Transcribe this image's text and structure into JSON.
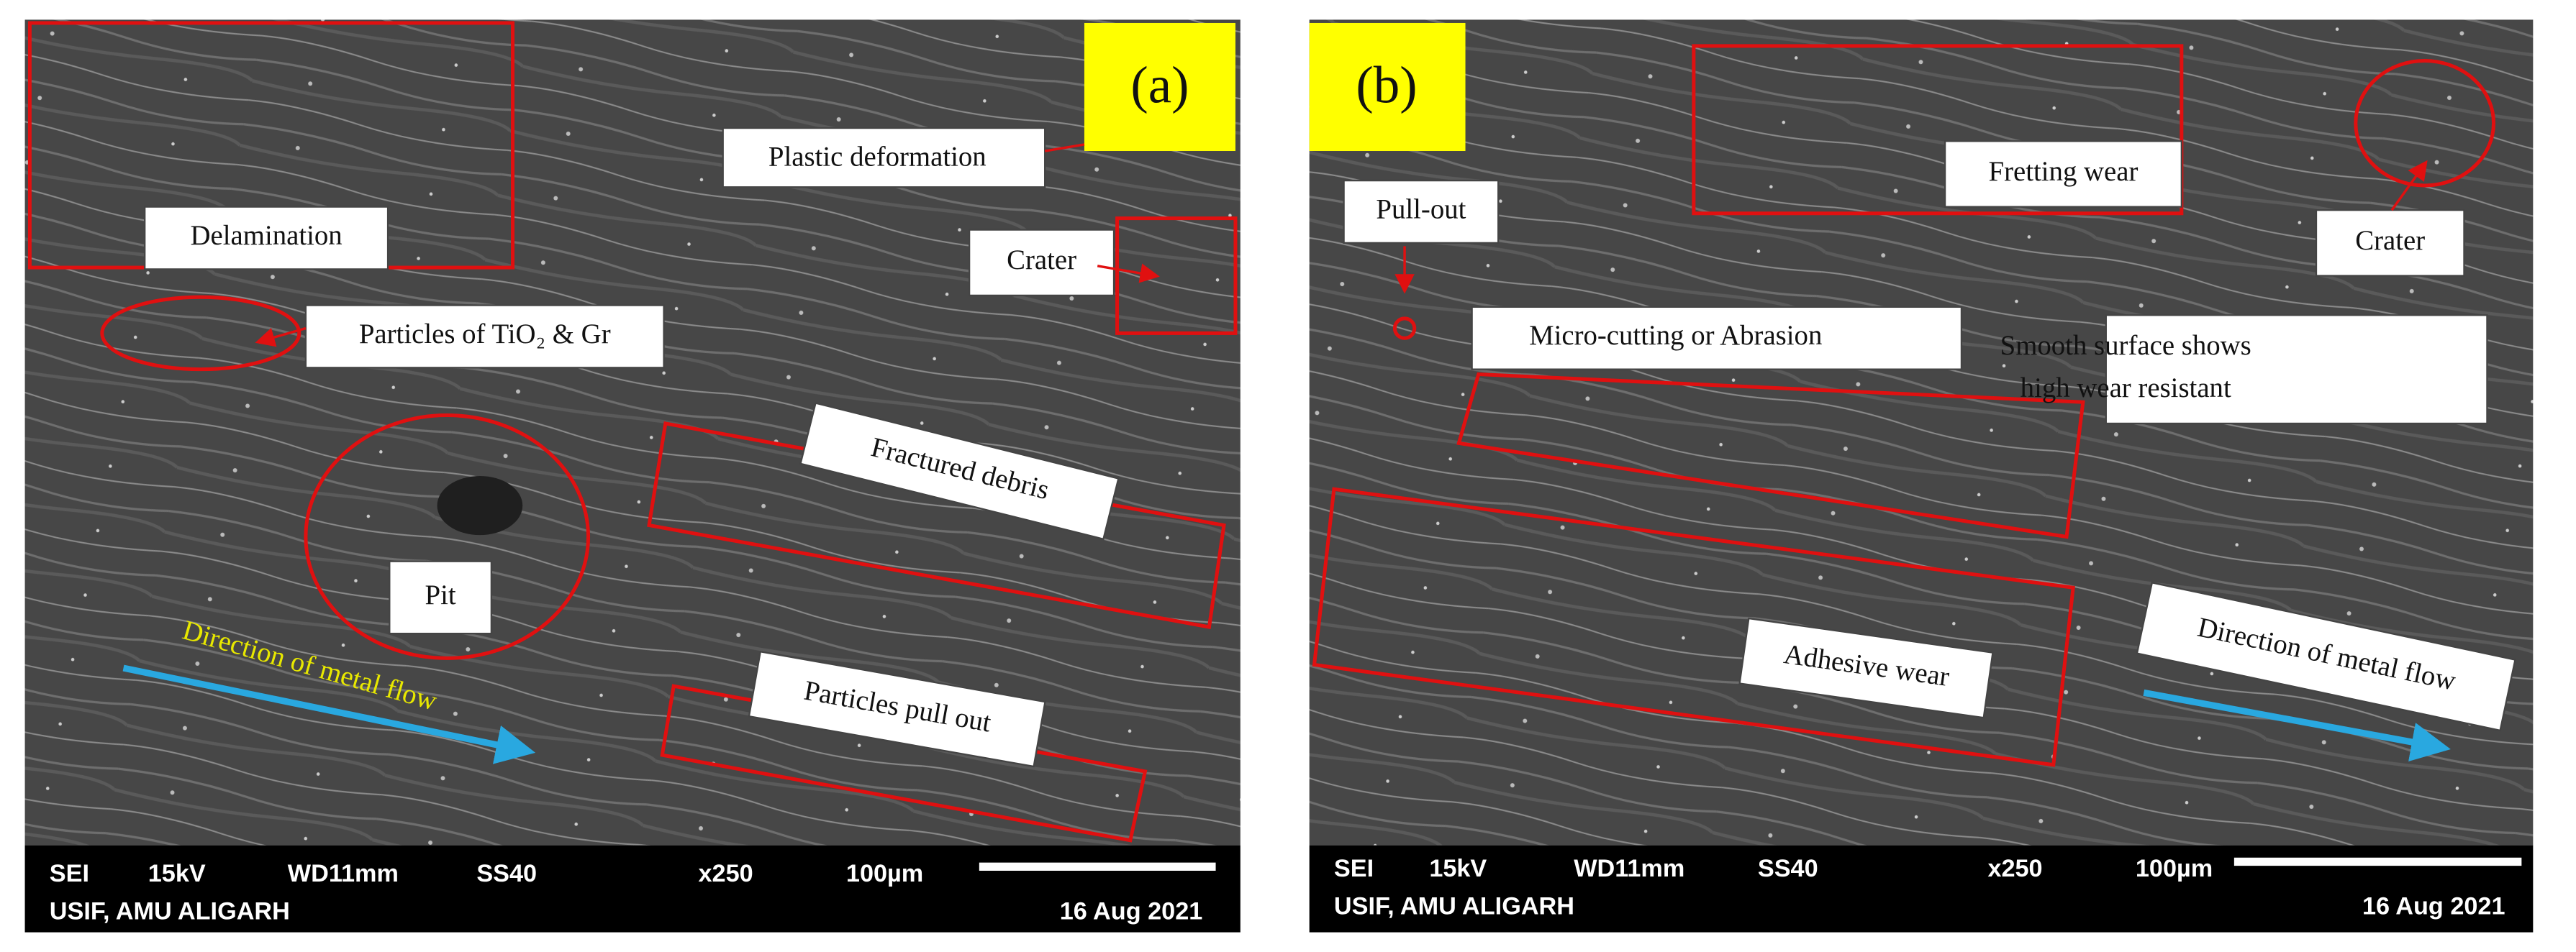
{
  "panels": [
    {
      "label": "(a)",
      "annotations": {
        "delamination": "Delamination",
        "plastic": "Plastic deformation",
        "crater": "Crater",
        "particles": "Particles of TiO₂ & Gr",
        "fractured": "Fractured debris",
        "pit": "Pit",
        "direction": "Direction of metal flow",
        "pullout": "Particles pull out"
      },
      "info": {
        "mode": "SEI",
        "voltage": "15kV",
        "wd": "WD11mm",
        "spot": "SS40",
        "magnification": "x250",
        "scale": "100µm",
        "facility": "USIF, AMU ALIGARH",
        "date": "16 Aug 2021"
      }
    },
    {
      "label": "(b)",
      "annotations": {
        "pullout": "Pull-out",
        "fretting": "Fretting wear",
        "crater": "Crater",
        "microcutting": "Micro-cutting or Abrasion",
        "smooth": [
          "Smooth surface shows",
          "high wear resistant"
        ],
        "adhesive": "Adhesive wear",
        "direction": "Direction of metal flow"
      },
      "info": {
        "mode": "SEI",
        "voltage": "15kV",
        "wd": "WD11mm",
        "spot": "SS40",
        "magnification": "x250",
        "scale": "100µm",
        "facility": "USIF, AMU ALIGARH",
        "date": "16 Aug 2021"
      }
    }
  ]
}
